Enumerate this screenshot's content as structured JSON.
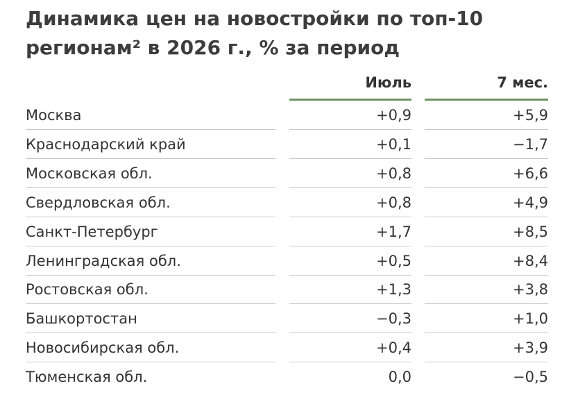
{
  "header": {
    "title": "Динамика цен на новостройки по топ-10 регионам² в 2026 г., % за период"
  },
  "table": {
    "columns": [
      "Июль",
      "7 мес."
    ],
    "rows": [
      [
        "Москва",
        "+0,9",
        "+5,9"
      ],
      [
        "Краснодарский край",
        "+0,1",
        "−1,7"
      ],
      [
        "Московская обл.",
        "+0,8",
        "+6,6"
      ],
      [
        "Свердловская обл.",
        "+0,8",
        "+4,9"
      ],
      [
        "Санкт-Петербург",
        "+1,7",
        "+8,5"
      ],
      [
        "Ленинградская обл.",
        "+0,5",
        "+8,4"
      ],
      [
        "Ростовская обл.",
        "+1,3",
        "+3,8"
      ],
      [
        "Башкортостан",
        "−0,3",
        "+1,0"
      ],
      [
        "Новосибирская обл.",
        "+0,4",
        "+3,9"
      ],
      [
        "Тюменская обл.",
        "0,0",
        "−0,5"
      ]
    ]
  }
}
